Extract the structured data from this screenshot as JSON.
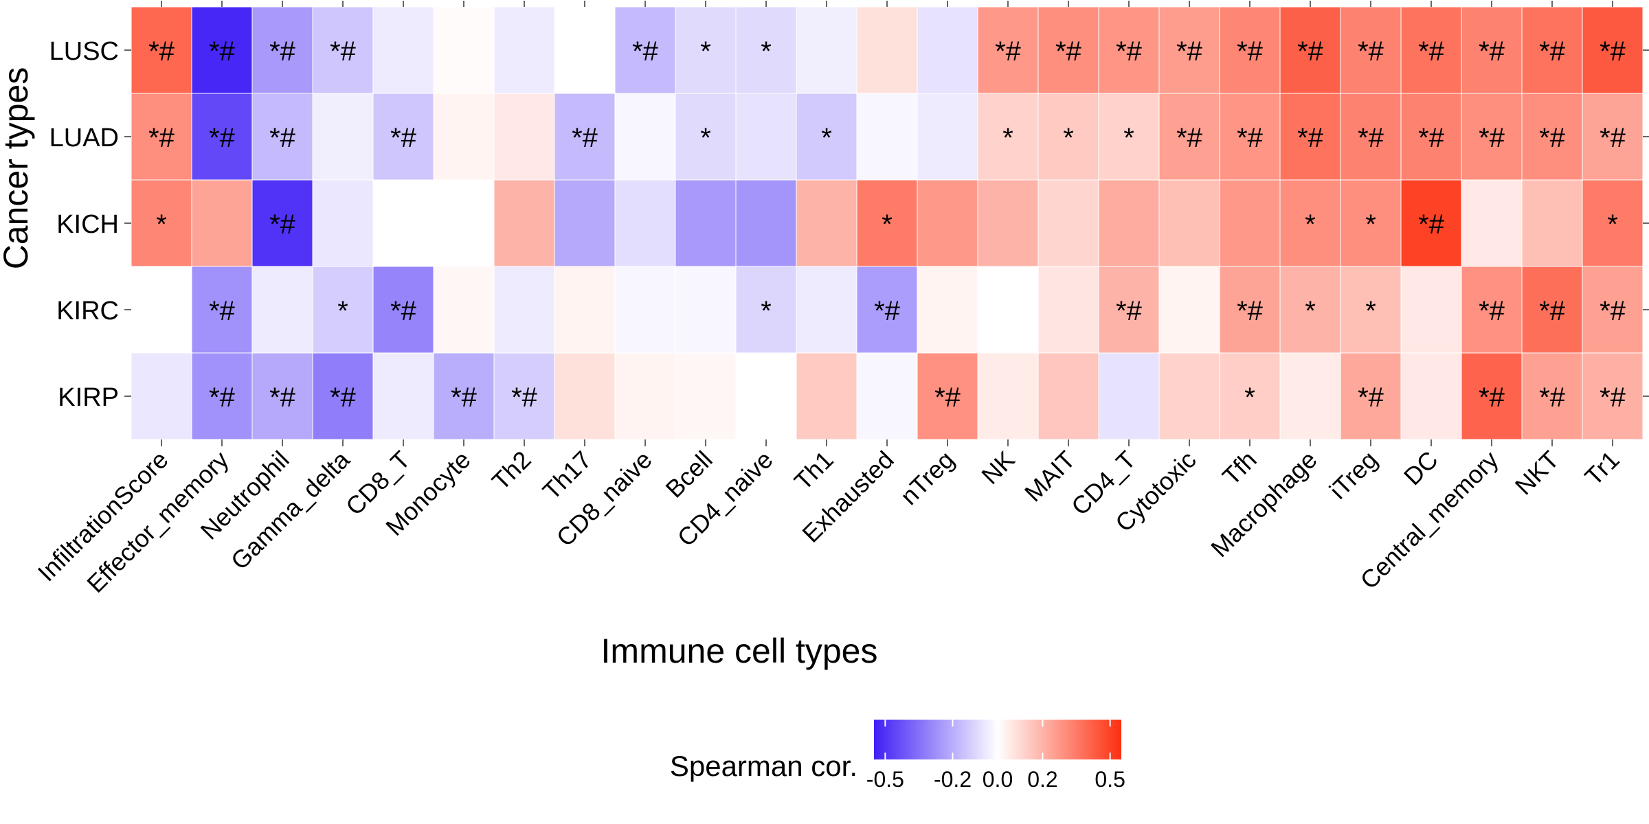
{
  "chart_data": {
    "type": "heatmap",
    "xlabel": "Immune cell types",
    "ylabel": "Cancer types",
    "legend_title": "Spearman cor.",
    "legend_placement": "bottom",
    "legend_ticks": [
      "-0.5",
      "-0.2",
      "0.0",
      "0.2",
      "0.5"
    ],
    "color_range": [
      -0.55,
      0.55
    ],
    "colors": {
      "negative": "#3f1ff5",
      "zero": "#ffffff",
      "positive": "#fd2f10"
    },
    "grid": false,
    "rows": [
      "LUSC",
      "LUAD",
      "KICH",
      "KIRC",
      "KIRP"
    ],
    "columns": [
      "InfiltrationScore",
      "Effector_memory",
      "Neutrophil",
      "Gamma_delta",
      "CD8_T",
      "Monocyte",
      "Th2",
      "Th17",
      "CD8_naive",
      "Bcell",
      "CD4_naive",
      "Th1",
      "Exhausted",
      "nTreg",
      "NK",
      "MAIT",
      "CD4_T",
      "Cytotoxic",
      "Tfh",
      "Macrophage",
      "iTreg",
      "DC",
      "Central_memory",
      "NKT",
      "Tr1"
    ],
    "values": [
      [
        0.4,
        -0.53,
        -0.25,
        -0.14,
        -0.05,
        0.01,
        -0.05,
        0.0,
        -0.17,
        -0.09,
        -0.09,
        -0.04,
        0.08,
        -0.07,
        0.27,
        0.3,
        0.28,
        0.26,
        0.32,
        0.42,
        0.33,
        0.37,
        0.33,
        0.37,
        0.44
      ],
      [
        0.3,
        -0.45,
        -0.17,
        -0.04,
        -0.14,
        0.03,
        0.06,
        -0.17,
        -0.02,
        -0.09,
        -0.07,
        -0.13,
        -0.02,
        -0.05,
        0.12,
        0.14,
        0.12,
        0.25,
        0.28,
        0.37,
        0.33,
        0.33,
        0.3,
        0.3,
        0.24
      ],
      [
        0.32,
        0.24,
        -0.5,
        -0.06,
        0.0,
        0.0,
        0.2,
        -0.21,
        -0.08,
        -0.25,
        -0.26,
        0.2,
        0.35,
        0.27,
        0.2,
        0.11,
        0.22,
        0.17,
        0.27,
        0.3,
        0.3,
        0.5,
        0.06,
        0.17,
        0.35
      ],
      [
        0.0,
        -0.27,
        -0.05,
        -0.12,
        -0.3,
        0.02,
        -0.05,
        0.03,
        -0.02,
        -0.02,
        -0.1,
        -0.05,
        -0.24,
        0.03,
        0.0,
        0.07,
        0.2,
        0.03,
        0.24,
        0.2,
        0.17,
        0.06,
        0.29,
        0.38,
        0.25
      ],
      [
        -0.06,
        -0.27,
        -0.21,
        -0.32,
        -0.05,
        -0.2,
        -0.12,
        0.08,
        0.03,
        0.02,
        0.0,
        0.14,
        -0.02,
        0.29,
        0.05,
        0.15,
        -0.07,
        0.12,
        0.13,
        0.05,
        0.23,
        0.06,
        0.41,
        0.25,
        0.21
      ]
    ],
    "annotations": [
      [
        "*#",
        "*#",
        "*#",
        "*#",
        "",
        "",
        "",
        "",
        "*#",
        "*",
        "*",
        "",
        "",
        "",
        "*#",
        "*#",
        "*#",
        "*#",
        "*#",
        "*#",
        "*#",
        "*#",
        "*#",
        "*#",
        "*#"
      ],
      [
        "*#",
        "*#",
        "*#",
        "",
        "*#",
        "",
        "",
        "*#",
        "",
        "*",
        "",
        "*",
        "",
        "",
        "*",
        "*",
        "*",
        "*#",
        "*#",
        "*#",
        "*#",
        "*#",
        "*#",
        "*#",
        "*#"
      ],
      [
        "*",
        "",
        "*#",
        "",
        "",
        "",
        "",
        "",
        "",
        "",
        "",
        "",
        "*",
        "",
        "",
        "",
        "",
        "",
        "",
        "*",
        "*",
        "*#",
        "",
        "",
        "*"
      ],
      [
        "",
        "*#",
        "",
        "*",
        "*#",
        "",
        "",
        "",
        "",
        "",
        "*",
        "",
        "*#",
        "",
        "",
        "",
        "*#",
        "",
        "*#",
        "*",
        "*",
        "",
        "*#",
        "*#",
        "*#"
      ],
      [
        "",
        "*#",
        "*#",
        "*#",
        "",
        "*#",
        "*#",
        "",
        "",
        "",
        "",
        "",
        "",
        "*#",
        "",
        "",
        "",
        "",
        "*",
        "",
        "*#",
        "",
        "*#",
        "*#",
        "*#"
      ]
    ]
  }
}
